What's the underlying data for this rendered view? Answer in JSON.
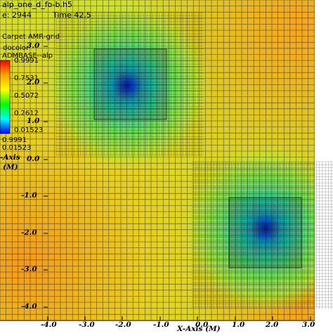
{
  "header": {
    "db_label": "alp_one_d_fo-b.h5",
    "cycle_label": "e: 2944",
    "time_label": "Time 42.5",
    "mesh_label": "Carpet AMR-grid"
  },
  "legend": {
    "plot_type": "docolor",
    "var_name": "ADMBASE--alp",
    "ticks": [
      "0.9991",
      "0.7531",
      "0.5072",
      "0.2612",
      "0.01523"
    ],
    "max_label": "0.9991",
    "min_label": "0.01523",
    "colors": [
      "#ff0000",
      "#ffa500",
      "#ffff00",
      "#00ff00",
      "#00ffff",
      "#0000ff"
    ]
  },
  "axes": {
    "y_title_line1": "-Axis",
    "y_title_line2": "(M)",
    "x_title": "X-Axis (M)",
    "y_ticks": [
      "3.0",
      "2.0",
      "1.0",
      "0.0",
      "-1.0",
      "-2.0",
      "-3.0",
      "-4.0"
    ],
    "x_ticks": [
      "-4.0",
      "-3.0",
      "-2.0",
      "-1.0",
      "0.0",
      "1.0",
      "2.0",
      "3.0"
    ]
  },
  "chart_data": {
    "type": "heatmap",
    "xlabel": "X-Axis (M)",
    "ylabel": "-Axis (M)",
    "variable": "ADMBASE--alp",
    "color_range": [
      0.01523,
      0.9991
    ],
    "xlim": [
      -4.0,
      3.5
    ],
    "ylim": [
      -4.3,
      3.6
    ],
    "sources": [
      {
        "x": -1.9,
        "y": 1.9,
        "min_value": 0.01523
      },
      {
        "x": 1.9,
        "y": -1.9,
        "min_value": 0.01523
      }
    ],
    "mesh": "Carpet AMR-grid"
  }
}
